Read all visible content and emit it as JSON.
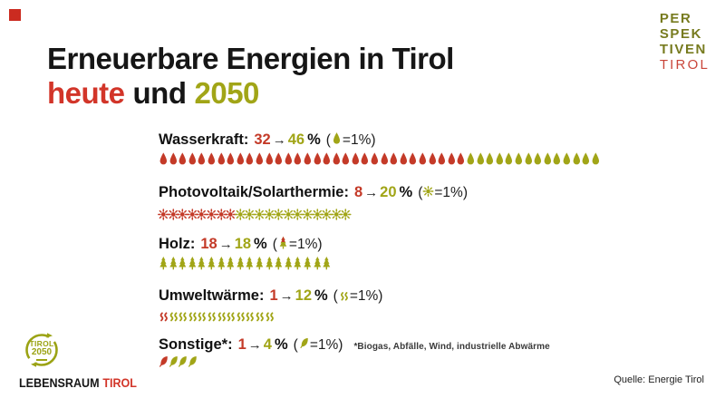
{
  "colors": {
    "red": "#c43a28",
    "olive": "#a1a517",
    "title_black": "#161616",
    "corner_square": "#cb2b20"
  },
  "header": {
    "title": "Erneuerbare Energien in Tirol",
    "sub_heute": "heute",
    "sub_und": "und",
    "sub_year": "2050"
  },
  "brand": {
    "lines": [
      "PER",
      "SPEK",
      "TIVEN",
      "TIROL"
    ]
  },
  "arrow": "→",
  "chart_data": {
    "type": "bar",
    "style": "pictogram unit chart, 1 icon = 1 %",
    "title": "Erneuerbare Energien in Tirol heute und 2050",
    "unit": "%",
    "categories": [
      "Wasserkraft",
      "Photovoltaik/Solarthermie",
      "Holz",
      "Umweltwärme",
      "Sonstige*"
    ],
    "series": [
      {
        "name": "heute",
        "color": "#c43a28",
        "values": [
          32,
          8,
          18,
          1,
          1
        ]
      },
      {
        "name": "2050",
        "color": "#a1a517",
        "values": [
          46,
          20,
          18,
          12,
          4
        ]
      }
    ],
    "icons": [
      "droplet",
      "sun",
      "tree",
      "heat-wave",
      "leaf"
    ],
    "footnote": "*Biogas, Abfälle, Wind, industrielle Abwärme",
    "rows": [
      {
        "label": "Wasserkraft:",
        "today": "32",
        "future": "46",
        "pct": "%",
        "paren": "(",
        "eq": "=1%)",
        "icon": "droplet",
        "red_count": 32,
        "olive_count": 14,
        "total": 46
      },
      {
        "label": "Photovoltaik/Solarthermie:",
        "today": "8",
        "future": "20",
        "pct": "%",
        "paren": "(",
        "eq": "=1%)",
        "icon": "sun",
        "red_count": 8,
        "olive_count": 12,
        "total": 20
      },
      {
        "label": "Holz:",
        "today": "18",
        "future": "18",
        "pct": "%",
        "paren": "(",
        "eq": "=1%)",
        "icon": "tree",
        "red_count": 0,
        "olive_count": 18,
        "total": 18,
        "label_icon_split": true
      },
      {
        "label": "Umweltwärme:",
        "today": "1",
        "future": "12",
        "pct": "%",
        "paren": "(",
        "eq": "=1%)",
        "icon": "heat-wave",
        "red_count": 1,
        "olive_count": 11,
        "total": 12
      },
      {
        "label": "Sonstige*:",
        "today": "1",
        "future": "4",
        "pct": "%",
        "paren": "(",
        "eq": "=1%)",
        "icon": "leaf",
        "red_count": 1,
        "olive_count": 3,
        "total": 4,
        "footnote": "*Biogas, Abfälle, Wind, industrielle Abwärme"
      }
    ]
  },
  "bottom_left": {
    "circle_line1": "TIROL",
    "circle_line2": "2050",
    "brand_black": "LEBENSRAUM",
    "brand_red": "TIROL"
  },
  "source": "Quelle: Energie Tirol"
}
